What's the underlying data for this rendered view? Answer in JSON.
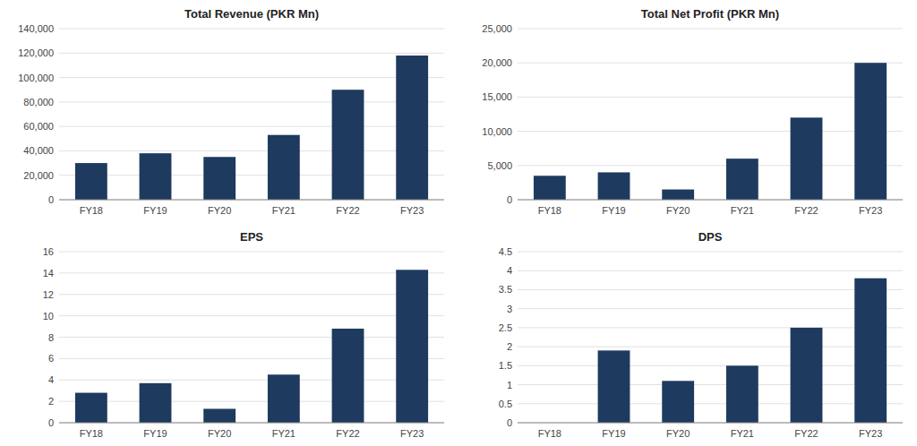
{
  "chart_data": [
    {
      "type": "bar",
      "title": "Total Revenue (PKR Mn)",
      "categories": [
        "FY18",
        "FY19",
        "FY20",
        "FY21",
        "FY22",
        "FY23"
      ],
      "values": [
        30000,
        38000,
        35000,
        53000,
        90000,
        118000
      ],
      "color": "#1e3a5f",
      "ylim": [
        0,
        140000
      ],
      "yticks": [
        0,
        {
          "value": 20000,
          "label": "20,000"
        },
        {
          "value": 40000,
          "label": "40,000"
        },
        {
          "value": 60000,
          "label": "60,000"
        },
        {
          "value": 80000,
          "label": "80,000"
        },
        {
          "value": 100000,
          "label": "100,000"
        },
        {
          "value": 120000,
          "label": "120,000"
        },
        {
          "value": 140000,
          "label": "140,000"
        }
      ],
      "grid": true
    },
    {
      "type": "bar",
      "title": "Total Net Profit (PKR Mn)",
      "categories": [
        "FY18",
        "FY19",
        "FY20",
        "FY21",
        "FY22",
        "FY23"
      ],
      "values": [
        3500,
        4000,
        1500,
        6000,
        12000,
        20000
      ],
      "color": "#1e3a5f",
      "ylim": [
        0,
        25000
      ],
      "yticks": [
        0,
        {
          "value": 5000,
          "label": "5,000"
        },
        {
          "value": 10000,
          "label": "10,000"
        },
        {
          "value": 15000,
          "label": "15,000"
        },
        {
          "value": 20000,
          "label": "20,000"
        },
        {
          "value": 25000,
          "label": "25,000"
        }
      ],
      "grid": true
    },
    {
      "type": "bar",
      "title": "EPS",
      "categories": [
        "FY18",
        "FY19",
        "FY20",
        "FY21",
        "FY22",
        "FY23"
      ],
      "values": [
        2.8,
        3.7,
        1.3,
        4.5,
        8.8,
        14.3
      ],
      "color": "#1e3a5f",
      "ylim": [
        0,
        16
      ],
      "yticks": [
        0,
        2,
        4,
        6,
        8,
        10,
        12,
        14,
        16
      ],
      "grid": true
    },
    {
      "type": "bar",
      "title": "DPS",
      "categories": [
        "FY18",
        "FY19",
        "FY20",
        "FY21",
        "FY22",
        "FY23"
      ],
      "values": [
        0.0,
        1.9,
        1.1,
        1.5,
        2.5,
        3.8
      ],
      "color": "#1e3a5f",
      "ylim": [
        0,
        4.5
      ],
      "yticks": [
        0,
        0.5,
        1,
        1.5,
        2,
        2.5,
        3,
        3.5,
        4,
        4.5
      ],
      "grid": true
    }
  ]
}
